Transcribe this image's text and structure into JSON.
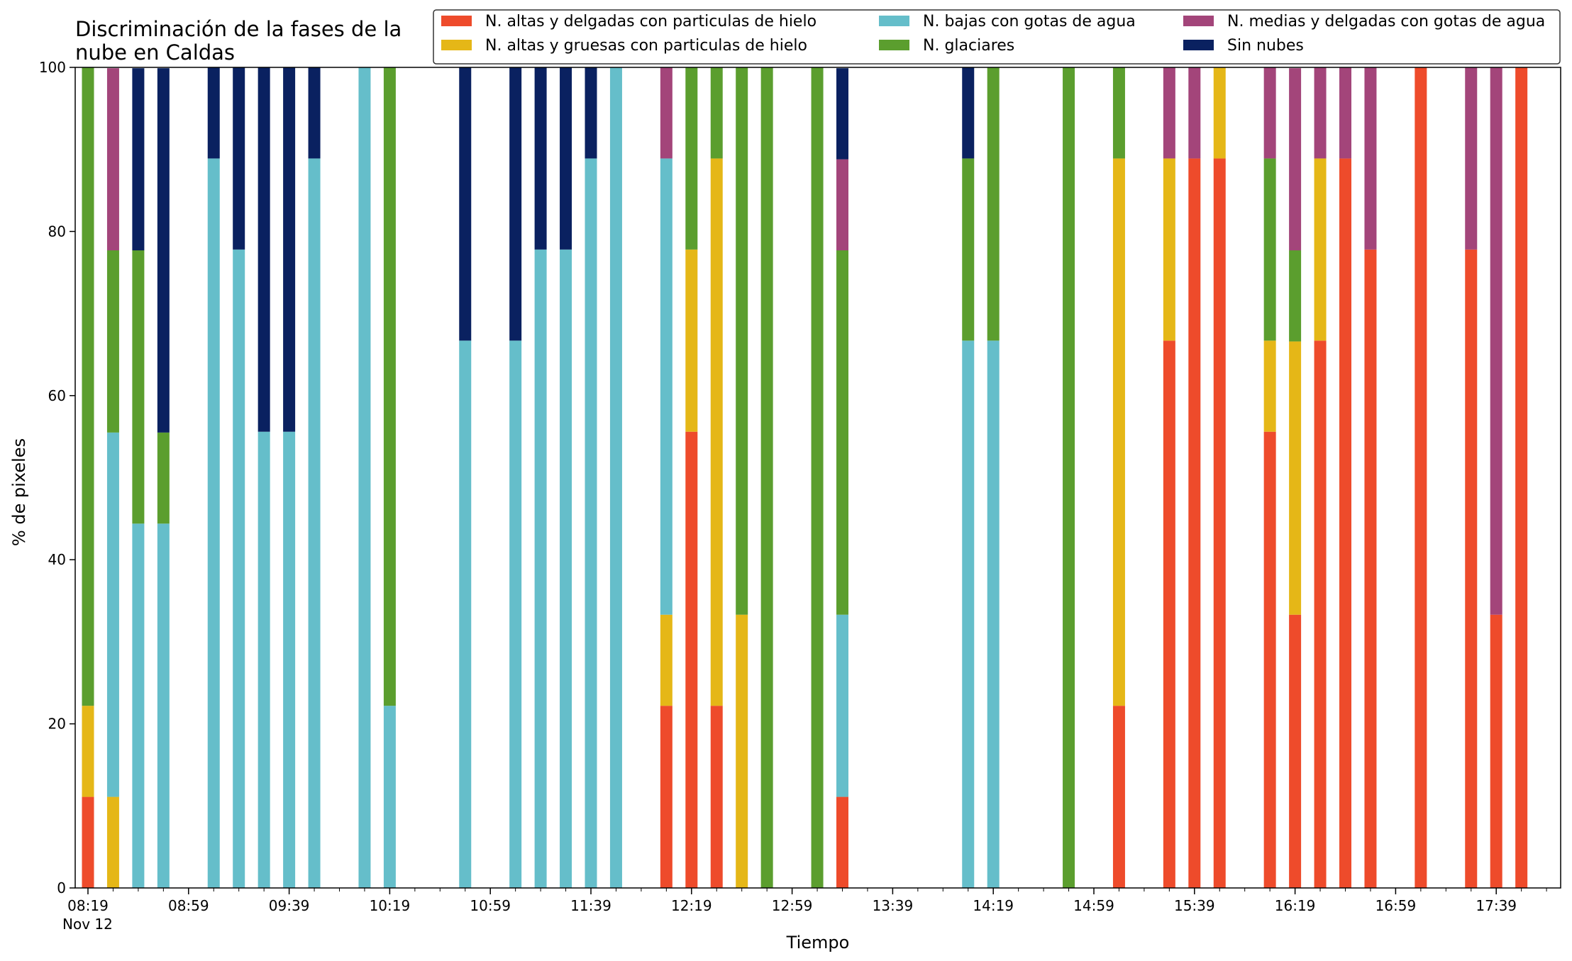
{
  "chart_data": {
    "type": "bar",
    "stacked": true,
    "title_lines": [
      "Discriminación de la fases de la",
      "nube en Caldas"
    ],
    "xlabel": "Tiempo",
    "ylabel": "% de pixeles",
    "ylim": [
      0,
      100
    ],
    "yticks": [
      0,
      20,
      40,
      60,
      80,
      100
    ],
    "x_start_time": "08:19",
    "x_start_date_label": "Nov 12",
    "x_interval_minutes": 10,
    "x_slot_count": 59,
    "x_major_ticks": [
      {
        "slot": 0,
        "label": "08:19"
      },
      {
        "slot": 4,
        "label": "08:59"
      },
      {
        "slot": 8,
        "label": "09:39"
      },
      {
        "slot": 12,
        "label": "10:19"
      },
      {
        "slot": 16,
        "label": "10:59"
      },
      {
        "slot": 20,
        "label": "11:39"
      },
      {
        "slot": 24,
        "label": "12:19"
      },
      {
        "slot": 28,
        "label": "12:59"
      },
      {
        "slot": 32,
        "label": "13:39"
      },
      {
        "slot": 36,
        "label": "14:19"
      },
      {
        "slot": 40,
        "label": "14:59"
      },
      {
        "slot": 44,
        "label": "15:39"
      },
      {
        "slot": 48,
        "label": "16:19"
      },
      {
        "slot": 52,
        "label": "16:59"
      },
      {
        "slot": 56,
        "label": "17:39"
      }
    ],
    "legend_position": "top-right",
    "series": [
      {
        "name": "N. altas y delgadas con particulas de hielo",
        "color": "#EE4B2B"
      },
      {
        "name": "N. altas y gruesas con particulas de hielo",
        "color": "#E5B717"
      },
      {
        "name": "N. bajas con gotas de agua",
        "color": "#65BECA"
      },
      {
        "name": "N. glaciares",
        "color": "#5B9E2E"
      },
      {
        "name": "N. medias y delgadas con gotas de agua",
        "color": "#A3457A"
      },
      {
        "name": "Sin nubes",
        "color": "#0A2160"
      }
    ],
    "legend_layout": [
      [
        0,
        2,
        4
      ],
      [
        1,
        3,
        5
      ]
    ],
    "bars": [
      {
        "slot": 0,
        "values": [
          11.1,
          11.1,
          0,
          77.8,
          0,
          0
        ]
      },
      {
        "slot": 1,
        "values": [
          0,
          11.1,
          44.4,
          22.2,
          22.2,
          0
        ]
      },
      {
        "slot": 2,
        "values": [
          0,
          0,
          44.4,
          33.3,
          0,
          22.2
        ]
      },
      {
        "slot": 3,
        "values": [
          0,
          0,
          44.4,
          11.1,
          0,
          44.4
        ]
      },
      {
        "slot": 5,
        "values": [
          0,
          0,
          88.9,
          0,
          0,
          11.1
        ]
      },
      {
        "slot": 6,
        "values": [
          0,
          0,
          77.8,
          0,
          0,
          22.2
        ]
      },
      {
        "slot": 7,
        "values": [
          0,
          0,
          55.6,
          0,
          0,
          44.4
        ]
      },
      {
        "slot": 8,
        "values": [
          0,
          0,
          55.6,
          0,
          0,
          44.4
        ]
      },
      {
        "slot": 9,
        "values": [
          0,
          0,
          88.9,
          0,
          0,
          11.1
        ]
      },
      {
        "slot": 11,
        "values": [
          0,
          0,
          100,
          0,
          0,
          0
        ]
      },
      {
        "slot": 12,
        "values": [
          0,
          0,
          22.2,
          77.8,
          0,
          0
        ]
      },
      {
        "slot": 15,
        "values": [
          0,
          0,
          66.7,
          0,
          0,
          33.3
        ]
      },
      {
        "slot": 17,
        "values": [
          0,
          0,
          66.7,
          0,
          0,
          33.3
        ]
      },
      {
        "slot": 18,
        "values": [
          0,
          0,
          77.8,
          0,
          0,
          22.2
        ]
      },
      {
        "slot": 19,
        "values": [
          0,
          0,
          77.8,
          0,
          0,
          22.2
        ]
      },
      {
        "slot": 20,
        "values": [
          0,
          0,
          88.9,
          0,
          0,
          11.1
        ]
      },
      {
        "slot": 21,
        "values": [
          0,
          0,
          100,
          0,
          0,
          0
        ]
      },
      {
        "slot": 23,
        "values": [
          22.2,
          11.1,
          55.6,
          0,
          11.1,
          0
        ]
      },
      {
        "slot": 24,
        "values": [
          55.6,
          22.2,
          0,
          22.2,
          0,
          0
        ]
      },
      {
        "slot": 25,
        "values": [
          22.2,
          66.7,
          0,
          11.1,
          0,
          0
        ]
      },
      {
        "slot": 26,
        "values": [
          0,
          33.3,
          0,
          66.7,
          0,
          0
        ]
      },
      {
        "slot": 27,
        "values": [
          0,
          0,
          0,
          100,
          0,
          0
        ]
      },
      {
        "slot": 29,
        "values": [
          0,
          0,
          0,
          100,
          0,
          0
        ]
      },
      {
        "slot": 30,
        "values": [
          11.1,
          0,
          22.2,
          44.4,
          11.1,
          11.1
        ]
      },
      {
        "slot": 35,
        "values": [
          0,
          0,
          66.7,
          22.2,
          0,
          11.1
        ]
      },
      {
        "slot": 36,
        "values": [
          0,
          0,
          66.7,
          33.3,
          0,
          0
        ]
      },
      {
        "slot": 39,
        "values": [
          0,
          0,
          0,
          100,
          0,
          0
        ]
      },
      {
        "slot": 41,
        "values": [
          22.2,
          66.7,
          0,
          11.1,
          0,
          0
        ]
      },
      {
        "slot": 43,
        "values": [
          66.7,
          22.2,
          0,
          0,
          11.1,
          0
        ]
      },
      {
        "slot": 44,
        "values": [
          88.9,
          0,
          0,
          0,
          11.1,
          0
        ]
      },
      {
        "slot": 45,
        "values": [
          88.9,
          11.1,
          0,
          0,
          0,
          0
        ]
      },
      {
        "slot": 47,
        "values": [
          55.6,
          11.1,
          0,
          22.2,
          11.1,
          0
        ]
      },
      {
        "slot": 48,
        "values": [
          33.3,
          33.3,
          0,
          11.1,
          22.2,
          0
        ]
      },
      {
        "slot": 49,
        "values": [
          66.7,
          22.2,
          0,
          0,
          11.1,
          0
        ]
      },
      {
        "slot": 50,
        "values": [
          88.9,
          0,
          0,
          0,
          11.1,
          0
        ]
      },
      {
        "slot": 51,
        "values": [
          77.8,
          0,
          0,
          0,
          22.2,
          0
        ]
      },
      {
        "slot": 53,
        "values": [
          100,
          0,
          0,
          0,
          0,
          0
        ]
      },
      {
        "slot": 55,
        "values": [
          77.8,
          0,
          0,
          0,
          22.2,
          0
        ]
      },
      {
        "slot": 56,
        "values": [
          33.3,
          0,
          0,
          0,
          66.7,
          0
        ]
      },
      {
        "slot": 57,
        "values": [
          100,
          0,
          0,
          0,
          0,
          0
        ]
      }
    ]
  }
}
